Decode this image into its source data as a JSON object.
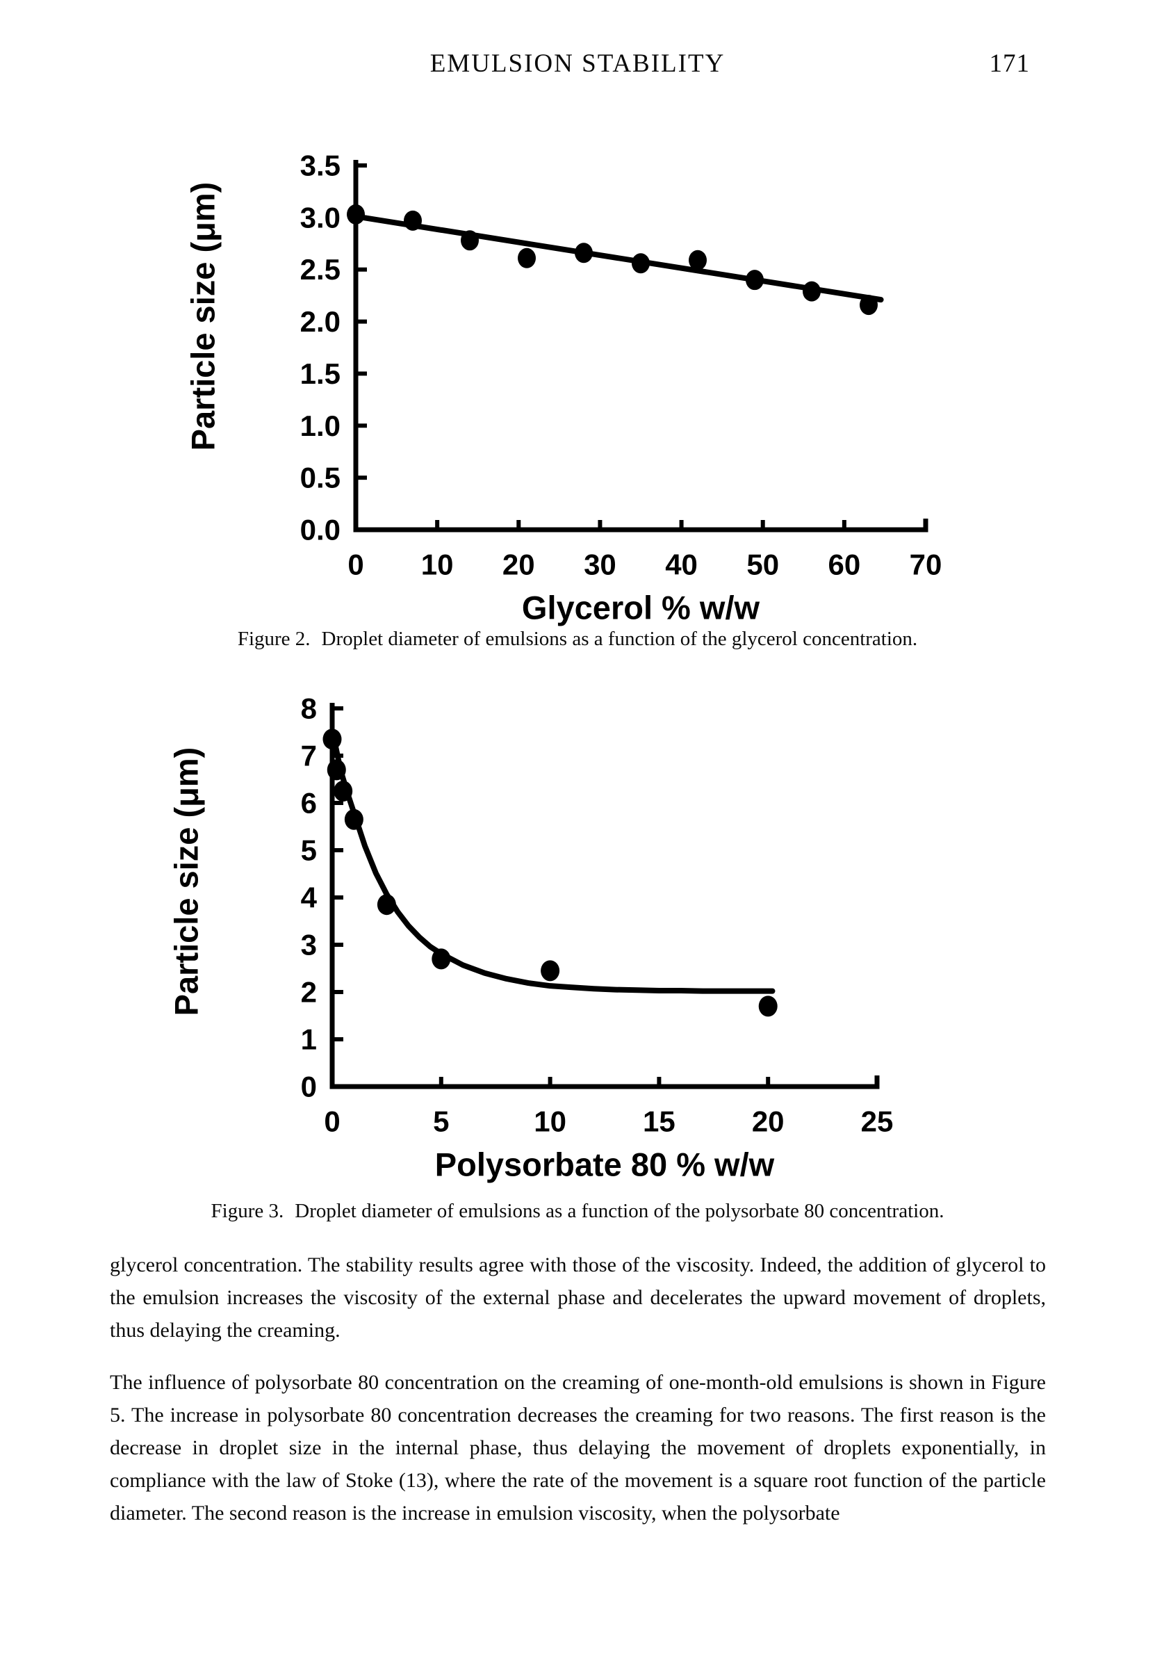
{
  "header": {
    "running_title": "EMULSION STABILITY",
    "page_number": "171"
  },
  "figures": [
    {
      "caption_label": "Figure 2.",
      "caption_text": "Droplet diameter of emulsions as a function of the glycerol concentration."
    },
    {
      "caption_label": "Figure 3.",
      "caption_text": "Droplet diameter of emulsions as a function of the polysorbate 80 concentration."
    }
  ],
  "chart_data": [
    {
      "type": "scatter",
      "name": "figure-2",
      "title": "",
      "xlabel": "Glycerol % w/w",
      "ylabel": "Particle size (μm)",
      "xlim": [
        0,
        70
      ],
      "ylim": [
        0.0,
        3.5
      ],
      "x_ticks": [
        "0",
        "10",
        "20",
        "30",
        "40",
        "50",
        "60",
        "70"
      ],
      "y_ticks": [
        "0.0",
        "0.5",
        "1.0",
        "1.5",
        "2.0",
        "2.5",
        "3.0",
        "3.5"
      ],
      "grid": false,
      "legend": "none",
      "marker": "filled-circle",
      "ink_color": "#000000",
      "series": [
        {
          "name": "droplet-diameter-vs-glycerol",
          "points": [
            [
              0,
              3.03
            ],
            [
              7,
              2.97
            ],
            [
              14,
              2.78
            ],
            [
              21,
              2.61
            ],
            [
              28,
              2.66
            ],
            [
              35,
              2.56
            ],
            [
              42,
              2.59
            ],
            [
              49,
              2.4
            ],
            [
              56,
              2.29
            ],
            [
              63,
              2.16
            ]
          ]
        }
      ],
      "fit": {
        "type": "linear",
        "points": [
          [
            0,
            3.01
          ],
          [
            64.5,
            2.21
          ]
        ]
      }
    },
    {
      "type": "scatter",
      "name": "figure-3",
      "title": "",
      "xlabel": "Polysorbate 80 % w/w",
      "ylabel": "Particle size (μm)",
      "xlim": [
        0,
        25
      ],
      "ylim": [
        0,
        8
      ],
      "x_ticks": [
        "0",
        "5",
        "10",
        "15",
        "20",
        "25"
      ],
      "y_ticks": [
        "0",
        "1",
        "2",
        "3",
        "4",
        "5",
        "6",
        "7",
        "8"
      ],
      "grid": false,
      "legend": "none",
      "marker": "filled-circle",
      "ink_color": "#000000",
      "series": [
        {
          "name": "droplet-diameter-vs-polysorbate80",
          "points": [
            [
              0,
              7.35
            ],
            [
              0.2,
              6.7
            ],
            [
              0.5,
              6.25
            ],
            [
              1,
              5.65
            ],
            [
              2.5,
              3.85
            ],
            [
              5,
              2.7
            ],
            [
              10,
              2.45
            ],
            [
              20,
              1.7
            ]
          ]
        }
      ],
      "fit": {
        "type": "exponential-decay",
        "points": [
          [
            0.15,
            7.21
          ],
          [
            0.4,
            6.67
          ],
          [
            0.7,
            6.21
          ],
          [
            1,
            5.79
          ],
          [
            1.5,
            5.09
          ],
          [
            2,
            4.52
          ],
          [
            2.5,
            4.07
          ],
          [
            3,
            3.7
          ],
          [
            3.5,
            3.4
          ],
          [
            4,
            3.16
          ],
          [
            4.5,
            2.96
          ],
          [
            5,
            2.81
          ],
          [
            6,
            2.57
          ],
          [
            7,
            2.4
          ],
          [
            8,
            2.28
          ],
          [
            9,
            2.19
          ],
          [
            10,
            2.13
          ],
          [
            11,
            2.1
          ],
          [
            12,
            2.07
          ],
          [
            13,
            2.05
          ],
          [
            14,
            2.04
          ],
          [
            15,
            2.03
          ],
          [
            16,
            2.03
          ],
          [
            17,
            2.02
          ],
          [
            18,
            2.02
          ],
          [
            19,
            2.02
          ],
          [
            20.2,
            2.02
          ]
        ]
      }
    }
  ],
  "body": {
    "paragraphs": [
      "glycerol concentration. The stability results agree with those of the viscosity. Indeed, the addition of glycerol to the emulsion increases the viscosity of the external phase and decelerates the upward movement of droplets, thus delaying the creaming.",
      "The influence of polysorbate 80 concentration on the creaming of one-month-old emulsions is shown in Figure 5. The increase in polysorbate 80 concentration decreases the creaming for two reasons. The first reason is the decrease in droplet size in the internal phase, thus delaying the movement of droplets exponentially, in compliance with the law of Stoke (13), where the rate of the movement is a square root function of the particle diameter. The second reason is the increase in emulsion viscosity, when the polysorbate"
    ]
  }
}
